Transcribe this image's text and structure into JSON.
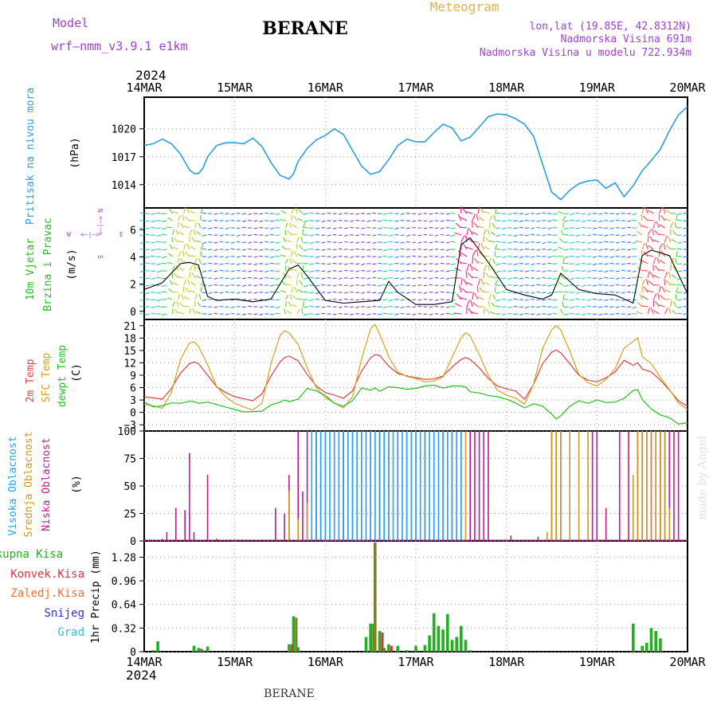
{
  "header": {
    "model_label": "Model",
    "model_name": "wrf—nmm_v3.9.1 e1km",
    "station": "BERANE",
    "product": "Meteogram",
    "coords": "lon,lat (19.85E, 42.8312N)",
    "altitude": "Nadmorska Visina 691m",
    "model_altitude": "Nadmorska Visina u modelu 722.934m"
  },
  "colors": {
    "model": "#a040d0",
    "product": "#e0b050",
    "pressure": "#2aa0e0",
    "t2m": "#e04040",
    "sfc": "#d8a020",
    "dewpt": "#20c020",
    "high_cloud": "#20a0ff",
    "mid_cloud": "#d09820",
    "low_cloud": "#c01890",
    "total_rain": "#20b020",
    "conv_rain": "#e03040",
    "frz_rain": "#f07030",
    "snow": "#3030d0",
    "hail": "#30c0d0",
    "olive": "#808020"
  },
  "x_axis": {
    "year": "2024",
    "ticks": [
      "14MAR",
      "15MAR",
      "16MAR",
      "17MAR",
      "18MAR",
      "19MAR",
      "20MAR"
    ],
    "range_days": [
      0,
      6
    ]
  },
  "panels": {
    "pressure": {
      "title": "Pritisak na nivou mora",
      "unit": "(hPa)",
      "ticks": [
        "1014",
        "1017",
        "1020"
      ]
    },
    "wind": {
      "title1": "10m Vjetar",
      "title2": "Brzina i Pravac",
      "unit": "(m/s)",
      "ticks": [
        "0",
        "2",
        "4",
        "6"
      ],
      "legend": {
        "w": "W",
        "e": "E",
        "n": "N",
        "s": "S",
        "arrow_h": "<—|—>",
        "arrow_v_top": "<—|—>"
      }
    },
    "temperature": {
      "t1": "2m Temp",
      "t2": "SFC Temp",
      "t3": "dewpt Temp",
      "unit": "(C)",
      "ticks": [
        "−3",
        "0",
        "3",
        "6",
        "9",
        "12",
        "15",
        "18",
        "21"
      ]
    },
    "cloud": {
      "t1": "Visoka Oblacnost",
      "t2": "Srednja Oblacnost",
      "t3": "Niska Oblacnost",
      "unit": "(%)",
      "ticks": [
        "0",
        "25",
        "50",
        "75",
        "100"
      ]
    },
    "precip": {
      "l1": "Ukupna Kisa",
      "l2": "Konvek.Kisa",
      "l3": "Zaledj.Kisa",
      "l4": "Snijeg",
      "l5": "Grad",
      "unit": "1hr Precip (mm)",
      "ticks": [
        "0",
        "0.32",
        "0.64",
        "0.96",
        "1.28"
      ]
    }
  },
  "footer": {
    "station": "BERANE",
    "credit": "made by Angel"
  },
  "chart_data": [
    {
      "type": "line",
      "title": "Pritisak na nivou mora",
      "ylabel": "(hPa)",
      "ylim": [
        1011.5,
        1023.4
      ],
      "series": [
        {
          "name": "Pritisak na nivou mora",
          "x": [
            0,
            0.1,
            0.2,
            0.3,
            0.4,
            0.5,
            0.55,
            0.6,
            0.65,
            0.7,
            0.8,
            0.9,
            1.0,
            1.1,
            1.2,
            1.3,
            1.4,
            1.5,
            1.6,
            1.65,
            1.7,
            1.8,
            1.9,
            2.0,
            2.1,
            2.2,
            2.3,
            2.4,
            2.5,
            2.6,
            2.7,
            2.8,
            2.9,
            3.0,
            3.1,
            3.2,
            3.3,
            3.4,
            3.5,
            3.6,
            3.7,
            3.8,
            3.9,
            4.0,
            4.1,
            4.2,
            4.3,
            4.4,
            4.5,
            4.6,
            4.7,
            4.8,
            4.9,
            5.0,
            5.1,
            5.2,
            5.3,
            5.4,
            5.5,
            5.6,
            5.7,
            5.8,
            5.9,
            6.0
          ],
          "values": [
            1018.2,
            1018.4,
            1018.9,
            1018.4,
            1017.3,
            1015.6,
            1015.2,
            1015.2,
            1015.8,
            1017.0,
            1018.2,
            1018.5,
            1018.5,
            1018.4,
            1019.0,
            1018.1,
            1016.4,
            1015.0,
            1014.6,
            1015.2,
            1016.5,
            1017.9,
            1018.8,
            1019.3,
            1020.0,
            1019.4,
            1017.7,
            1016.0,
            1015.1,
            1015.4,
            1016.7,
            1018.2,
            1018.9,
            1018.6,
            1018.6,
            1019.6,
            1020.5,
            1020.1,
            1018.7,
            1019.1,
            1020.2,
            1021.3,
            1021.6,
            1021.5,
            1021.1,
            1020.5,
            1019.2,
            1016.2,
            1013.2,
            1012.4,
            1013.4,
            1014.1,
            1014.4,
            1014.5,
            1013.6,
            1014.2,
            1012.7,
            1013.9,
            1015.5,
            1016.6,
            1017.8,
            1019.8,
            1021.5,
            1022.4
          ]
        }
      ]
    },
    {
      "type": "line",
      "title": "10m Vjetar Brzina i Pravac",
      "ylabel": "(m/s)",
      "ylim": [
        -0.6,
        7.6
      ],
      "series": [
        {
          "name": "10m Vjetar",
          "x": [
            0,
            0.2,
            0.4,
            0.5,
            0.6,
            0.7,
            0.8,
            1.0,
            1.2,
            1.4,
            1.6,
            1.7,
            1.8,
            2.0,
            2.2,
            2.4,
            2.6,
            2.7,
            2.8,
            3.0,
            3.2,
            3.4,
            3.5,
            3.6,
            3.8,
            4.0,
            4.2,
            4.4,
            4.5,
            4.6,
            4.8,
            5.0,
            5.2,
            5.4,
            5.5,
            5.6,
            5.8,
            6.0
          ],
          "values": [
            1.6,
            2.1,
            3.5,
            3.6,
            3.4,
            1.1,
            0.8,
            0.9,
            0.7,
            0.9,
            3.1,
            3.4,
            2.6,
            0.8,
            0.6,
            0.7,
            0.8,
            2.2,
            1.4,
            0.5,
            0.5,
            0.7,
            4.9,
            5.4,
            3.6,
            1.6,
            1.2,
            0.9,
            1.2,
            2.8,
            1.6,
            1.3,
            1.2,
            0.6,
            4.1,
            4.5,
            4.1,
            1.3
          ]
        }
      ]
    },
    {
      "type": "line",
      "title": "2m Temp / SFC Temp / dewpt Temp",
      "ylabel": "(C)",
      "ylim": [
        -4.5,
        22.5
      ],
      "x": [
        0,
        0.1,
        0.2,
        0.3,
        0.4,
        0.5,
        0.55,
        0.6,
        0.7,
        0.8,
        0.9,
        1.0,
        1.1,
        1.2,
        1.3,
        1.4,
        1.5,
        1.55,
        1.6,
        1.7,
        1.8,
        1.9,
        2.0,
        2.1,
        2.2,
        2.3,
        2.4,
        2.5,
        2.55,
        2.6,
        2.7,
        2.8,
        2.9,
        3.0,
        3.1,
        3.2,
        3.3,
        3.4,
        3.5,
        3.55,
        3.6,
        3.7,
        3.8,
        3.9,
        4.0,
        4.1,
        4.2,
        4.3,
        4.4,
        4.5,
        4.55,
        4.6,
        4.7,
        4.8,
        4.9,
        5.0,
        5.1,
        5.2,
        5.3,
        5.4,
        5.45,
        5.5,
        5.6,
        5.7,
        5.8,
        5.9,
        6.0
      ],
      "series": [
        {
          "name": "2m Temp",
          "values": [
            3.8,
            3.5,
            3.2,
            5.8,
            9.5,
            11.8,
            12.2,
            11.8,
            9.0,
            6.2,
            4.8,
            3.8,
            3.3,
            2.8,
            4.5,
            8.8,
            12.2,
            13.3,
            13.6,
            12.5,
            9.2,
            6.4,
            4.8,
            4.2,
            3.4,
            5.2,
            10.0,
            13.2,
            14.0,
            13.8,
            11.2,
            9.4,
            8.8,
            8.4,
            8.0,
            8.1,
            8.8,
            11.0,
            12.8,
            13.3,
            12.8,
            10.8,
            8.2,
            6.4,
            5.7,
            5.2,
            3.2,
            6.8,
            11.8,
            14.6,
            15.1,
            14.4,
            11.8,
            9.0,
            7.8,
            7.4,
            8.4,
            9.8,
            12.6,
            11.4,
            12.0,
            10.5,
            9.8,
            7.8,
            5.4,
            2.8,
            1.5
          ]
        },
        {
          "name": "SFC Temp",
          "values": [
            2.0,
            1.6,
            1.0,
            4.8,
            12.8,
            16.8,
            17.1,
            16.0,
            11.5,
            6.3,
            3.8,
            2.2,
            1.3,
            0.6,
            2.2,
            11.8,
            18.6,
            19.8,
            19.2,
            16.5,
            10.8,
            6.0,
            3.6,
            2.3,
            1.1,
            3.8,
            12.8,
            20.3,
            21.3,
            19.0,
            13.5,
            9.8,
            8.7,
            8.2,
            7.4,
            7.6,
            8.6,
            13.4,
            18.0,
            19.3,
            18.5,
            14.0,
            9.0,
            5.4,
            4.2,
            3.5,
            2.0,
            6.8,
            15.5,
            20.0,
            21.0,
            20.0,
            14.8,
            9.2,
            7.2,
            6.4,
            8.0,
            10.6,
            15.6,
            17.2,
            18.0,
            13.5,
            11.8,
            8.5,
            5.5,
            2.3,
            0.7
          ]
        },
        {
          "name": "dewpt Temp",
          "values": [
            2.5,
            1.3,
            1.6,
            2.3,
            2.2,
            2.7,
            2.6,
            2.2,
            2.5,
            1.9,
            1.3,
            0.7,
            0.1,
            0.2,
            0.3,
            1.8,
            2.5,
            3.0,
            2.6,
            3.2,
            5.8,
            5.2,
            4.1,
            2.2,
            1.5,
            2.8,
            5.9,
            5.4,
            5.9,
            5.1,
            6.2,
            6.0,
            5.6,
            5.8,
            6.4,
            6.6,
            5.9,
            6.4,
            6.4,
            6.1,
            5.0,
            4.7,
            4.1,
            3.8,
            3.2,
            2.3,
            1.1,
            2.1,
            1.5,
            -0.4,
            -1.6,
            -0.8,
            1.5,
            2.8,
            2.2,
            3.0,
            2.4,
            2.5,
            3.4,
            5.3,
            5.5,
            3.1,
            0.8,
            -0.6,
            -1.3,
            -2.8,
            -2.5
          ]
        }
      ]
    },
    {
      "type": "bar",
      "title": "Visoka / Srednja / Niska Oblacnost",
      "ylabel": "(%)",
      "ylim": [
        0,
        100
      ],
      "series": [
        {
          "name": "Niska Oblacnost",
          "x": [
            0.2,
            0.25,
            0.35,
            0.45,
            0.5,
            0.55,
            0.7,
            0.8,
            1.45,
            1.55,
            1.6,
            1.7,
            1.75,
            1.8,
            1.9,
            1.95,
            2.2,
            2.25,
            2.6,
            2.65,
            2.8,
            2.95,
            3.1,
            3.6,
            3.65,
            3.7,
            3.75,
            3.8,
            4.05,
            4.35,
            4.5,
            4.55,
            4.6,
            4.95,
            5.0,
            5.1,
            5.25,
            5.35,
            5.45,
            5.5,
            5.55,
            5.6,
            5.65,
            5.7,
            5.75,
            5.8,
            5.85,
            5.9
          ],
          "values": [
            2,
            8,
            30,
            28,
            80,
            8,
            60,
            2,
            30,
            25,
            60,
            100,
            45,
            100,
            100,
            62,
            100,
            100,
            100,
            100,
            100,
            100,
            100,
            100,
            100,
            100,
            100,
            100,
            5,
            4,
            100,
            100,
            100,
            100,
            100,
            30,
            100,
            100,
            100,
            100,
            100,
            100,
            100,
            100,
            100,
            100,
            100,
            100
          ]
        },
        {
          "name": "Srednja Oblacnost",
          "x": [
            1.6,
            1.7,
            1.8,
            1.9,
            1.95,
            2.0,
            2.1,
            2.2,
            2.3,
            2.4,
            2.5,
            2.6,
            2.7,
            2.8,
            2.9,
            3.0,
            3.1,
            3.2,
            3.3,
            3.4,
            3.5,
            3.55,
            4.45,
            4.5,
            4.55,
            4.6,
            4.7,
            4.8,
            4.9,
            5.4,
            5.45,
            5.5,
            5.55,
            5.6,
            5.65,
            5.7,
            5.75,
            5.8
          ],
          "values": [
            45,
            20,
            35,
            100,
            100,
            100,
            100,
            100,
            100,
            100,
            100,
            100,
            100,
            100,
            100,
            100,
            100,
            100,
            100,
            100,
            100,
            100,
            8,
            100,
            100,
            100,
            100,
            100,
            100,
            60,
            100,
            100,
            100,
            100,
            100,
            100,
            100,
            30
          ]
        },
        {
          "name": "Visoka Oblacnost",
          "x": [
            1.85,
            1.9,
            1.95,
            2.0,
            2.05,
            2.1,
            2.15,
            2.2,
            2.25,
            2.3,
            2.35,
            2.4,
            2.45,
            2.5,
            2.55,
            2.6,
            2.65,
            2.7,
            2.75,
            2.8,
            2.85,
            2.9,
            2.95,
            3.0,
            3.05,
            3.1,
            3.15,
            3.2,
            3.25,
            3.3,
            3.35,
            3.4,
            3.45,
            3.5
          ],
          "values": [
            100,
            100,
            100,
            100,
            100,
            100,
            100,
            100,
            100,
            100,
            100,
            100,
            100,
            100,
            100,
            100,
            100,
            100,
            100,
            100,
            100,
            100,
            100,
            100,
            100,
            100,
            100,
            100,
            100,
            100,
            100,
            100,
            100,
            100
          ]
        }
      ]
    },
    {
      "type": "bar",
      "title": "1hr Precip",
      "ylabel": "1hr Precip (mm)",
      "ylim": [
        0,
        1.5
      ],
      "series": [
        {
          "name": "Ukupna Kisa",
          "x": [
            0.1,
            0.15,
            0.55,
            0.6,
            0.65,
            0.7,
            1.6,
            1.65,
            1.7,
            2.45,
            2.5,
            2.55,
            2.6,
            2.65,
            2.7,
            2.8,
            2.9,
            3.0,
            3.1,
            3.15,
            3.2,
            3.25,
            3.3,
            3.35,
            3.4,
            3.45,
            3.5,
            3.55,
            3.6,
            5.4,
            5.5,
            5.55,
            5.6,
            5.65,
            5.7
          ],
          "values": [
            0.02,
            0.14,
            0.08,
            0.05,
            0.02,
            0.07,
            0.1,
            0.48,
            0.06,
            0.2,
            0.38,
            1.48,
            0.28,
            0.05,
            0.1,
            0.08,
            0.02,
            0.08,
            0.09,
            0.22,
            0.52,
            0.35,
            0.3,
            0.51,
            0.16,
            0.2,
            0.35,
            0.16,
            0.02,
            0.38,
            0.08,
            0.12,
            0.32,
            0.28,
            0.18
          ]
        },
        {
          "name": "Konvek.Kisa",
          "x": [
            0.6,
            1.6,
            1.65,
            2.5,
            2.6,
            2.7
          ],
          "values": [
            0.04,
            0.1,
            0.46,
            0.38,
            0.26,
            0.08
          ]
        }
      ]
    }
  ]
}
